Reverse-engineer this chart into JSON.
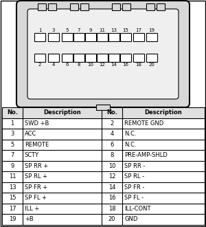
{
  "connector_pins_top": [
    1,
    3,
    5,
    7,
    9,
    11,
    13,
    15,
    17,
    19
  ],
  "connector_pins_bottom": [
    2,
    4,
    6,
    8,
    10,
    12,
    14,
    16,
    18,
    20
  ],
  "table_data": [
    [
      1,
      "SWD +B",
      2,
      "REMOTE GND"
    ],
    [
      3,
      "ACC",
      4,
      "N.C."
    ],
    [
      5,
      "REMOTE",
      6,
      "N.C."
    ],
    [
      7,
      "SCTY",
      8,
      "PRE-AMP-SHLD"
    ],
    [
      9,
      "SP RR +",
      10,
      "SP RR -"
    ],
    [
      11,
      "SP RL +",
      12,
      "SP RL -"
    ],
    [
      13,
      "SP FR +",
      14,
      "SP FR -"
    ],
    [
      15,
      "SP FL +",
      16,
      "SP FL -"
    ],
    [
      17,
      "ILL +",
      18,
      "ILL-CONT"
    ],
    [
      19,
      "+B",
      20,
      "GND"
    ]
  ],
  "bg_color": "#ffffff",
  "line_color": "#000000",
  "connector_fill": "#d8d8d8",
  "inner_fill": "#efefef",
  "pin_fill": "#ffffff",
  "header_fill": "#e0e0e0",
  "figw": 3.0,
  "figh": 3.3,
  "dpi": 100
}
